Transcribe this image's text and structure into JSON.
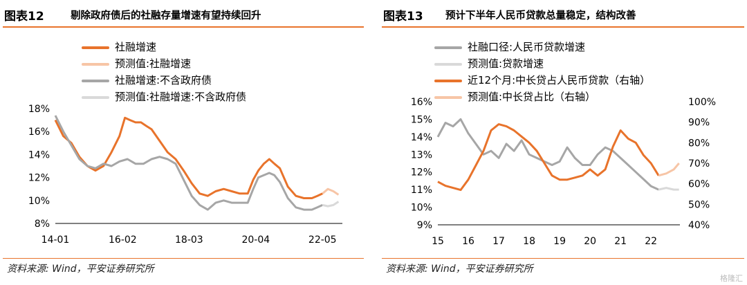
{
  "chart_data": [
    {
      "figure_number": "图表12",
      "title": "剔除政府债后的社融存量增速有望持续回升",
      "type": "line",
      "source": "资料来源: Wind，平安证券研究所",
      "x_ticks": [
        "14-01",
        "16-02",
        "18-03",
        "20-04",
        "22-05"
      ],
      "y_ticks": [
        "8%",
        "10%",
        "12%",
        "14%",
        "16%",
        "18%"
      ],
      "ylim": [
        8,
        18
      ],
      "legend_position": "top-left",
      "series": [
        {
          "name": "社融增速",
          "color": "#E8732B",
          "x": [
            2014.0,
            2014.25,
            2014.5,
            2014.75,
            2015.0,
            2015.25,
            2015.5,
            2015.75,
            2016.0,
            2016.17,
            2016.33,
            2016.5,
            2016.67,
            2016.83,
            2017.0,
            2017.25,
            2017.5,
            2017.75,
            2018.0,
            2018.25,
            2018.5,
            2018.75,
            2019.0,
            2019.25,
            2019.5,
            2019.75,
            2020.0,
            2020.17,
            2020.33,
            2020.5,
            2020.67,
            2020.83,
            2021.0,
            2021.25,
            2021.5,
            2021.75,
            2022.0,
            2022.17,
            2022.33
          ],
          "values": [
            17.0,
            15.6,
            15.0,
            13.8,
            13.0,
            12.6,
            13.0,
            14.2,
            15.6,
            17.2,
            17.0,
            16.8,
            16.8,
            16.5,
            16.2,
            15.2,
            14.2,
            13.6,
            12.6,
            11.5,
            10.6,
            10.4,
            10.8,
            11.0,
            10.8,
            10.6,
            10.6,
            11.8,
            12.6,
            13.2,
            13.6,
            13.2,
            12.8,
            11.2,
            10.4,
            10.2,
            10.2,
            10.4,
            10.6
          ]
        },
        {
          "name": "预测值:社融增速",
          "color": "#F7C5A6",
          "x": [
            2022.33,
            2022.5,
            2022.67,
            2022.83
          ],
          "values": [
            10.6,
            11.0,
            10.8,
            10.5
          ]
        },
        {
          "name": "社融增速:不含政府债",
          "color": "#A6A6A6",
          "x": [
            2014.0,
            2014.25,
            2014.5,
            2014.75,
            2015.0,
            2015.25,
            2015.5,
            2015.75,
            2016.0,
            2016.25,
            2016.5,
            2016.75,
            2017.0,
            2017.25,
            2017.5,
            2017.75,
            2018.0,
            2018.25,
            2018.5,
            2018.75,
            2019.0,
            2019.25,
            2019.5,
            2019.75,
            2020.0,
            2020.17,
            2020.33,
            2020.5,
            2020.67,
            2020.83,
            2021.0,
            2021.25,
            2021.5,
            2021.75,
            2022.0,
            2022.17,
            2022.33
          ],
          "values": [
            17.4,
            16.0,
            14.8,
            13.6,
            13.0,
            12.8,
            13.2,
            13.0,
            13.4,
            13.6,
            13.2,
            13.2,
            13.6,
            13.8,
            13.6,
            13.2,
            11.8,
            10.4,
            9.6,
            9.2,
            9.8,
            10.0,
            9.8,
            9.8,
            9.8,
            11.0,
            12.0,
            12.2,
            12.4,
            12.2,
            11.6,
            10.2,
            9.4,
            9.2,
            9.2,
            9.4,
            9.6
          ]
        },
        {
          "name": "预测值:社融增速:不含政府债",
          "color": "#D9D9D9",
          "x": [
            2022.33,
            2022.5,
            2022.67,
            2022.83
          ],
          "values": [
            9.6,
            9.5,
            9.6,
            9.9
          ]
        }
      ]
    },
    {
      "figure_number": "图表13",
      "title": "预计下半年人民币贷款总量稳定，结构改善",
      "type": "line",
      "source": "资料来源: Wind，平安证券研究所",
      "x_ticks": [
        "15",
        "16",
        "17",
        "18",
        "19",
        "20",
        "21",
        "22"
      ],
      "y_ticks_left": [
        "9%",
        "10%",
        "11%",
        "12%",
        "13%",
        "14%",
        "15%",
        "16%"
      ],
      "y_ticks_right": [
        "40%",
        "50%",
        "60%",
        "70%",
        "80%",
        "90%",
        "100%"
      ],
      "ylim_left": [
        9,
        16
      ],
      "ylim_right": [
        40,
        100
      ],
      "legend_position": "top-left",
      "series": [
        {
          "name": "社融口径:人民币贷款增速",
          "axis": "left",
          "color": "#A6A6A6",
          "x": [
            2015.0,
            2015.25,
            2015.5,
            2015.75,
            2016.0,
            2016.25,
            2016.5,
            2016.75,
            2017.0,
            2017.25,
            2017.5,
            2017.75,
            2018.0,
            2018.25,
            2018.5,
            2018.75,
            2019.0,
            2019.25,
            2019.5,
            2019.75,
            2020.0,
            2020.25,
            2020.5,
            2020.75,
            2021.0,
            2021.25,
            2021.5,
            2021.75,
            2022.0,
            2022.25
          ],
          "values": [
            14.0,
            14.8,
            14.6,
            15.0,
            14.2,
            13.6,
            13.0,
            13.2,
            12.8,
            13.6,
            13.2,
            13.8,
            13.0,
            12.8,
            12.6,
            12.4,
            12.6,
            13.4,
            12.8,
            12.4,
            12.4,
            13.0,
            13.4,
            13.2,
            12.8,
            12.4,
            12.0,
            11.6,
            11.2,
            11.0
          ]
        },
        {
          "name": "预测值:贷款增速",
          "axis": "left",
          "color": "#D9D9D9",
          "x": [
            2022.25,
            2022.5,
            2022.75,
            2022.92
          ],
          "values": [
            11.0,
            11.1,
            11.0,
            11.0
          ]
        },
        {
          "name": "近12个月:中长贷占人民币贷款（右轴）",
          "axis": "right",
          "color": "#E8732B",
          "x": [
            2015.0,
            2015.25,
            2015.5,
            2015.75,
            2016.0,
            2016.25,
            2016.5,
            2016.75,
            2017.0,
            2017.25,
            2017.5,
            2017.75,
            2018.0,
            2018.25,
            2018.5,
            2018.75,
            2019.0,
            2019.25,
            2019.5,
            2019.75,
            2020.0,
            2020.25,
            2020.5,
            2020.75,
            2021.0,
            2021.25,
            2021.5,
            2021.75,
            2022.0,
            2022.25
          ],
          "values": [
            61,
            59,
            58,
            57,
            62,
            69,
            76,
            86,
            89,
            88,
            86,
            83,
            80,
            76,
            70,
            64,
            62,
            62,
            63,
            64,
            67,
            64,
            67,
            78,
            86,
            82,
            80,
            74,
            70,
            64
          ]
        },
        {
          "name": "预测值:中长贷占比（右轴）",
          "axis": "right",
          "color": "#F7C5A6",
          "x": [
            2022.25,
            2022.5,
            2022.75,
            2022.92
          ],
          "values": [
            64,
            65,
            67,
            70
          ]
        }
      ]
    }
  ],
  "watermark": "格隆汇"
}
